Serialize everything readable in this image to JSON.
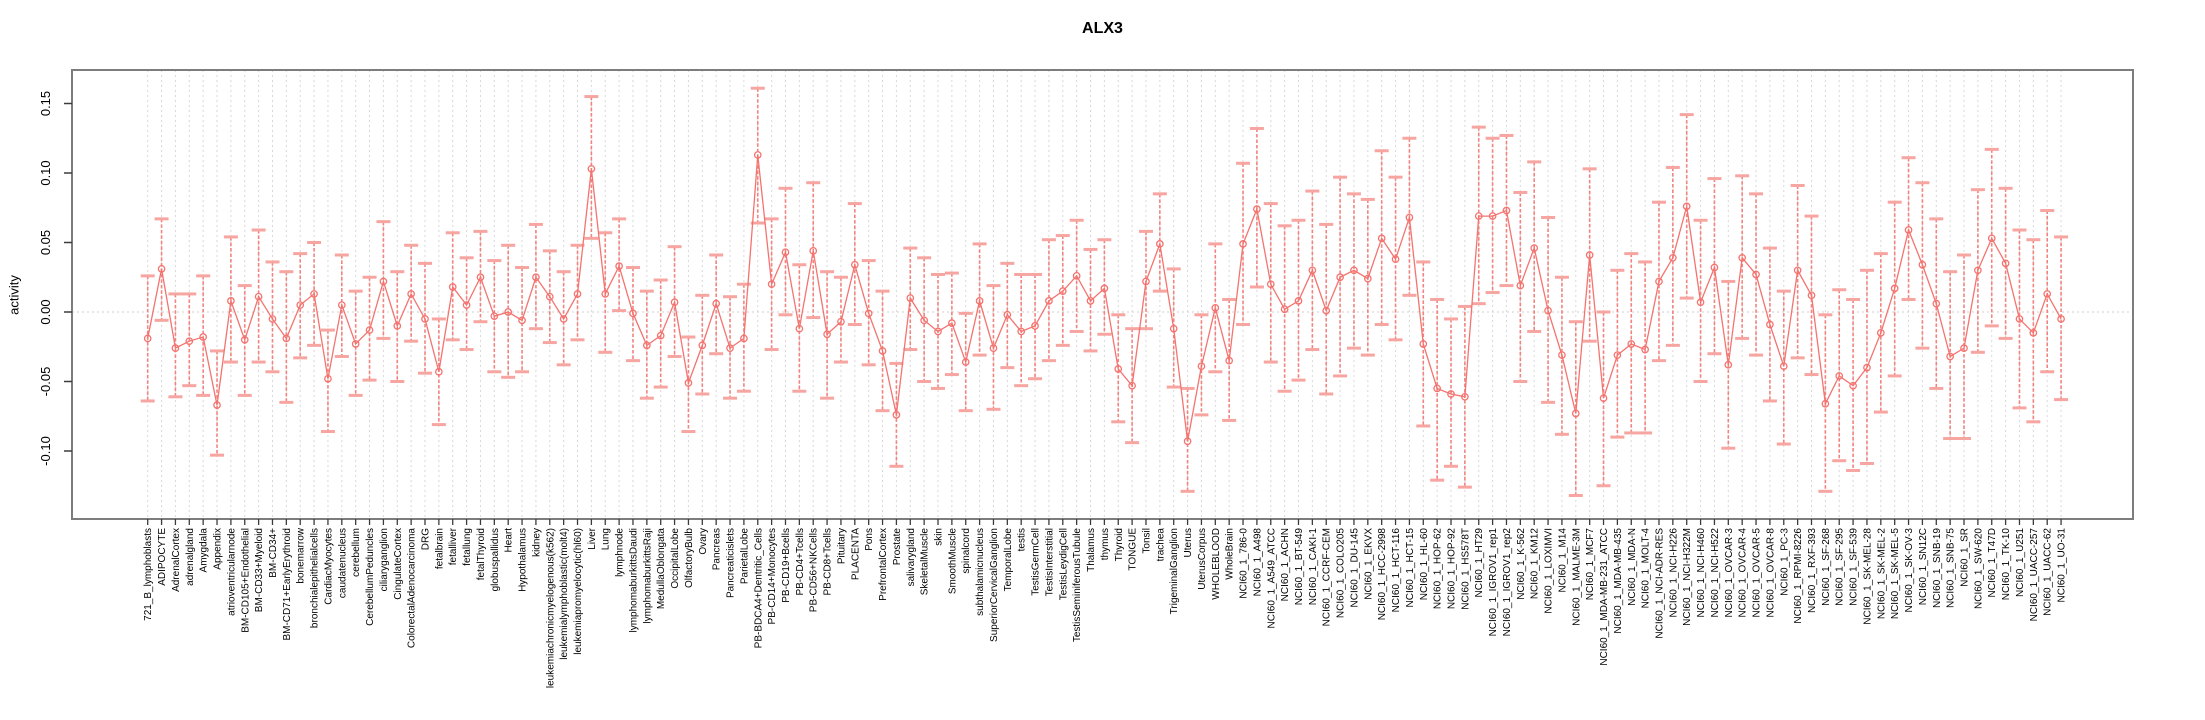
{
  "chart_data": {
    "type": "line",
    "title": "ALX3",
    "ylabel": "activity",
    "xlabel": "",
    "legend": "none",
    "grid": "vertical-dashed-per-category",
    "zero_line": true,
    "error_bars": true,
    "marker": "open-circle",
    "ylim": [
      -0.149,
      0.174
    ],
    "yticks": [
      0.15,
      0.1,
      0.05,
      0.0,
      -0.05,
      -0.1
    ],
    "ytick_labels": [
      "0.15",
      "0.10",
      "0.05",
      "0.00",
      "-0.05",
      "-0.10"
    ],
    "colors": {
      "series": "#f4736f",
      "error_line": "#f2837f",
      "error_cap": "#f7a5a1",
      "grid": "#d8d8d8",
      "zero_line": "#cfcfcf",
      "frame": "#7d7d7d",
      "tick": "#3c3c3c"
    },
    "categories": [
      "721_B_lymphoblasts",
      "ADIPOCYTE",
      "AdrenalCortex",
      "adrenalgland",
      "Amygdala",
      "Appendix",
      "atrioventricularnode",
      "BM-CD105+Endothelial",
      "BM-CD33+Myeloid",
      "BM-CD34+",
      "BM-CD71+EarlyErythroid",
      "bonemarrow",
      "bronchialepithelialcells",
      "CardiacMyocytes",
      "caudatenucleus",
      "cerebellum",
      "CerebellumPeduncles",
      "ciliaryganglion",
      "CingulateCortex",
      "ColorectalAdenocarcinoma",
      "DRG",
      "fetalbrain",
      "fetalliver",
      "fetallung",
      "fetalThyroid",
      "globuspallidus",
      "Heart",
      "Hypothalamus",
      "kidney",
      "leukemiachronicmyelogenous(k562)",
      "leukemialymphoblastic(molt4)",
      "leukemiapromyelocytic(hl60)",
      "Liver",
      "Lung",
      "lymphnode",
      "lymphomaburkittsDaudi",
      "lymphomaburkittsRaji",
      "MedullaOblongata",
      "OccipitalLobe",
      "OlfactoryBulb",
      "Ovary",
      "Pancreas",
      "Pancreaticislets",
      "ParietalLobe",
      "PB-BDCA4+Dentritic_Cells",
      "PB-CD14+Monocytes",
      "PB-CD19+Bcells",
      "PB-CD4+Tcells",
      "PB-CD56+NKCells",
      "PB-CD8+Tcells",
      "Pituitary",
      "PLACENTA",
      "Pons",
      "PrefrontalCortex",
      "Prostate",
      "salivarygland",
      "SkeletalMuscle",
      "skin",
      "SmoothMuscle",
      "spinalcord",
      "subthalamicnucleus",
      "SuperiorCervicalGanglion",
      "TemporalLobe",
      "testis",
      "TestisGermCell",
      "TestisInterstitial",
      "TestisLeydigCell",
      "TestisSeminiferousTubule",
      "Thalamus",
      "thymus",
      "Thyroid",
      "TONGUE",
      "Tonsil",
      "trachea",
      "TrigeminalGanglion",
      "Uterus",
      "UterusCorpus",
      "WHOLEBLOOD",
      "WholeBrain",
      "NCI60_1_786-0",
      "NCI60_1_A498",
      "NCI60_1_A549_ATCC",
      "NCI60_1_ACHN",
      "NCI60_1_BT-549",
      "NCI60_1_CAKI-1",
      "NCI60_1_CCRF-CEM",
      "NCI60_1_COLO205",
      "NCI60_1_DU-145",
      "NCI60_1_EKVX",
      "NCI60_1_HCC-2998",
      "NCI60_1_HCT-116",
      "NCI60_1_HCT-15",
      "NCI60_1_HL-60",
      "NCI60_1_HOP-62",
      "NCI60_1_HOP-92",
      "NCI60_1_HS578T",
      "NCI60_1_HT29",
      "NCI60_1_IGROV1_rep1",
      "NCI60_1_IGROV1_rep2",
      "NCI60_1_K-562",
      "NCI60_1_KM12",
      "NCI60_1_LOXIMVI",
      "NCI60_1_M14",
      "NCI60_1_MALME-3M",
      "NCI60_1_MCF7",
      "NCI60_1_MDA-MB-231_ATCC",
      "NCI60_1_MDA-MB-435",
      "NCI60_1_MDA-N",
      "NCI60_1_MOLT-4",
      "NCI60_1_NCI-ADR-RES",
      "NCI60_1_NCI-H226",
      "NCI60_1_NCI-H322M",
      "NCI60_1_NCI-H460",
      "NCI60_1_NCI-H522",
      "NCI60_1_OVCAR-3",
      "NCI60_1_OVCAR-4",
      "NCI60_1_OVCAR-5",
      "NCI60_1_OVCAR-8",
      "NCI60_1_PC-3",
      "NCI60_1_RPMI-8226",
      "NCI60_1_RXF-393",
      "NCI60_1_SF-268",
      "NCI60_1_SF-295",
      "NCI60_1_SF-539",
      "NCI60_1_SK-MEL-28",
      "NCI60_1_SK-MEL-2",
      "NCI60_1_SK-MEL-5",
      "NCI60_1_SK-OV-3",
      "NCI60_1_SN12C",
      "NCI60_1_SNB-19",
      "NCI60_1_SNB-75",
      "NCI60_1_SR",
      "NCI60_1_SW-620",
      "NCI60_1_T47D",
      "NCI60_1_TK-10",
      "NCI60_1_U251",
      "NCI60_1_UACC-257",
      "NCI60_1_UACC-62",
      "NCI60_1_UO-31"
    ],
    "values": [
      -0.019,
      0.031,
      -0.026,
      -0.021,
      -0.018,
      -0.067,
      0.008,
      -0.02,
      0.011,
      -0.005,
      -0.019,
      0.005,
      0.013,
      -0.048,
      0.005,
      -0.023,
      -0.013,
      0.022,
      -0.01,
      0.013,
      -0.005,
      -0.043,
      0.018,
      0.005,
      0.025,
      -0.003,
      0.0,
      -0.006,
      0.025,
      0.011,
      -0.005,
      0.013,
      0.103,
      0.013,
      0.033,
      -0.001,
      -0.024,
      -0.017,
      0.007,
      -0.051,
      -0.024,
      0.006,
      -0.026,
      -0.019,
      0.113,
      0.02,
      0.043,
      -0.012,
      0.044,
      -0.016,
      -0.007,
      0.034,
      -0.001,
      -0.028,
      -0.074,
      0.01,
      -0.006,
      -0.014,
      -0.008,
      -0.036,
      0.008,
      -0.026,
      -0.002,
      -0.014,
      -0.01,
      0.008,
      0.015,
      0.026,
      0.008,
      0.017,
      -0.041,
      -0.053,
      0.022,
      0.049,
      -0.012,
      -0.093,
      -0.039,
      0.003,
      -0.035,
      0.049,
      0.074,
      0.02,
      0.002,
      0.008,
      0.03,
      0.001,
      0.025,
      0.03,
      0.024,
      0.053,
      0.038,
      0.068,
      -0.023,
      -0.055,
      -0.059,
      -0.061,
      0.069,
      0.069,
      0.073,
      0.019,
      0.046,
      0.001,
      -0.031,
      -0.073,
      0.041,
      -0.062,
      -0.031,
      -0.023,
      -0.027,
      0.022,
      0.039,
      0.076,
      0.007,
      0.032,
      -0.038,
      0.039,
      0.027,
      -0.009,
      -0.039,
      0.03,
      0.012,
      -0.066,
      -0.046,
      -0.053,
      -0.04,
      -0.015,
      0.017,
      0.059,
      0.034,
      0.006,
      -0.032,
      -0.026,
      0.03,
      0.053,
      0.035,
      -0.005,
      -0.015,
      0.013,
      -0.005
    ],
    "error_high": [
      0.026,
      0.067,
      0.013,
      0.013,
      0.026,
      -0.028,
      0.054,
      0.019,
      0.059,
      0.036,
      0.029,
      0.042,
      0.05,
      -0.013,
      0.041,
      0.015,
      0.025,
      0.065,
      0.029,
      0.048,
      0.035,
      -0.005,
      0.057,
      0.039,
      0.058,
      0.037,
      0.048,
      0.032,
      0.063,
      0.044,
      0.029,
      0.048,
      0.155,
      0.057,
      0.067,
      0.032,
      0.015,
      0.023,
      0.047,
      -0.018,
      0.012,
      0.041,
      0.011,
      0.02,
      0.161,
      0.067,
      0.089,
      0.034,
      0.093,
      0.029,
      0.025,
      0.078,
      0.037,
      0.015,
      -0.037,
      0.046,
      0.039,
      0.027,
      0.028,
      -0.001,
      0.049,
      0.019,
      0.035,
      0.027,
      0.027,
      0.052,
      0.055,
      0.066,
      0.045,
      0.052,
      -0.002,
      -0.012,
      0.058,
      0.085,
      0.031,
      -0.055,
      -0.002,
      0.049,
      0.009,
      0.107,
      0.132,
      0.078,
      0.062,
      0.066,
      0.087,
      0.063,
      0.097,
      0.085,
      0.081,
      0.116,
      0.097,
      0.125,
      0.036,
      0.009,
      -0.005,
      0.004,
      0.133,
      0.125,
      0.127,
      0.086,
      0.108,
      0.068,
      0.025,
      -0.007,
      0.103,
      0.0,
      0.03,
      0.042,
      0.036,
      0.079,
      0.104,
      0.142,
      0.066,
      0.096,
      0.022,
      0.098,
      0.085,
      0.046,
      0.015,
      0.091,
      0.069,
      -0.002,
      0.016,
      0.009,
      0.03,
      0.042,
      0.079,
      0.111,
      0.093,
      0.067,
      0.029,
      0.041,
      0.088,
      0.117,
      0.089,
      0.059,
      0.052,
      0.073,
      0.054
    ],
    "error_low": [
      -0.064,
      -0.006,
      -0.061,
      -0.053,
      -0.06,
      -0.103,
      -0.036,
      -0.06,
      -0.036,
      -0.043,
      -0.065,
      -0.033,
      -0.024,
      -0.086,
      -0.032,
      -0.06,
      -0.049,
      -0.019,
      -0.05,
      -0.021,
      -0.044,
      -0.081,
      -0.02,
      -0.027,
      -0.007,
      -0.043,
      -0.047,
      -0.043,
      -0.012,
      -0.022,
      -0.038,
      -0.02,
      0.053,
      -0.029,
      0.001,
      -0.035,
      -0.062,
      -0.054,
      -0.032,
      -0.086,
      -0.059,
      -0.03,
      -0.062,
      -0.057,
      0.064,
      -0.027,
      -0.002,
      -0.057,
      -0.004,
      -0.062,
      -0.036,
      -0.009,
      -0.038,
      -0.071,
      -0.111,
      -0.027,
      -0.05,
      -0.055,
      -0.045,
      -0.071,
      -0.031,
      -0.07,
      -0.04,
      -0.053,
      -0.048,
      -0.035,
      -0.024,
      -0.014,
      -0.028,
      -0.016,
      -0.079,
      -0.094,
      -0.012,
      0.015,
      -0.054,
      -0.129,
      -0.074,
      -0.043,
      -0.078,
      -0.009,
      0.018,
      -0.036,
      -0.057,
      -0.049,
      -0.027,
      -0.059,
      -0.046,
      -0.026,
      -0.031,
      -0.009,
      -0.02,
      0.012,
      -0.082,
      -0.121,
      -0.111,
      -0.126,
      0.006,
      0.014,
      0.019,
      -0.05,
      -0.014,
      -0.065,
      -0.088,
      -0.132,
      -0.021,
      -0.125,
      -0.09,
      -0.087,
      -0.087,
      -0.035,
      -0.024,
      0.01,
      -0.05,
      -0.03,
      -0.098,
      -0.019,
      -0.031,
      -0.064,
      -0.095,
      -0.033,
      -0.045,
      -0.129,
      -0.107,
      -0.114,
      -0.109,
      -0.072,
      -0.046,
      0.009,
      -0.026,
      -0.055,
      -0.091,
      -0.091,
      -0.029,
      -0.01,
      -0.019,
      -0.069,
      -0.079,
      -0.043,
      -0.063
    ]
  }
}
